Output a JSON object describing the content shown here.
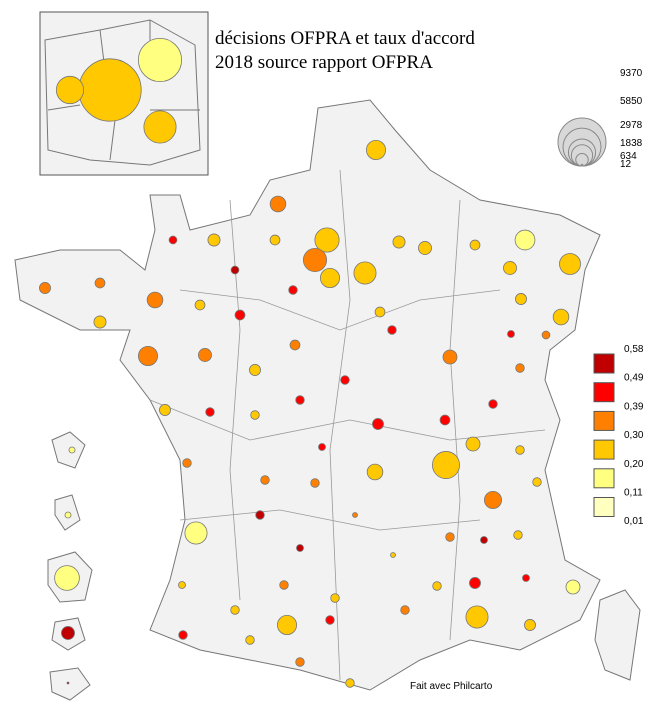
{
  "title": [
    "décisions OFPRA et taux d'accord",
    "2018 source rapport OFPRA"
  ],
  "size_legend": {
    "values": [
      9370,
      5850,
      2978,
      1838,
      634,
      12
    ]
  },
  "color_legend": {
    "breaks": [
      {
        "value": 0.58,
        "label": "0,58"
      },
      {
        "value": 0.49,
        "label": "0,49"
      },
      {
        "value": 0.39,
        "label": "0,39"
      },
      {
        "value": 0.3,
        "label": "0,30"
      },
      {
        "value": 0.2,
        "label": "0,20"
      },
      {
        "value": 0.11,
        "label": "0,11"
      },
      {
        "value": 0.01,
        "label": "0,01"
      }
    ],
    "colors": [
      "#c00000",
      "#ff0000",
      "#ff8000",
      "#ffc800",
      "#ffff80",
      "#ffffc0"
    ]
  },
  "credit": "Fait avec Philcarto",
  "inset": [
    {
      "decisions": 9370,
      "rate": 0.25
    },
    {
      "decisions": 4500,
      "rate": 0.15
    },
    {
      "decisions": 1800,
      "rate": 0.25
    },
    {
      "decisions": 2500,
      "rate": 0.25
    }
  ],
  "departments": [
    {
      "decisions": 1500,
      "rate": 0.25
    },
    {
      "decisions": 1000,
      "rate": 0.35
    },
    {
      "decisions": 600,
      "rate": 0.25
    },
    {
      "decisions": 250,
      "rate": 0.45
    },
    {
      "decisions": 250,
      "rate": 0.55
    },
    {
      "decisions": 400,
      "rate": 0.25
    },
    {
      "decisions": 2400,
      "rate": 0.25
    },
    {
      "decisions": 2200,
      "rate": 0.35
    },
    {
      "decisions": 1500,
      "rate": 0.25
    },
    {
      "decisions": 2000,
      "rate": 0.25
    },
    {
      "decisions": 300,
      "rate": 0.45
    },
    {
      "decisions": 400,
      "rate": 0.45
    },
    {
      "decisions": 400,
      "rate": 0.25
    },
    {
      "decisions": 1000,
      "rate": 0.35
    },
    {
      "decisions": 600,
      "rate": 0.25
    },
    {
      "decisions": 500,
      "rate": 0.35
    },
    {
      "decisions": 400,
      "rate": 0.35
    },
    {
      "decisions": 1500,
      "rate": 0.35
    },
    {
      "decisions": 700,
      "rate": 0.35
    },
    {
      "decisions": 500,
      "rate": 0.25
    },
    {
      "decisions": 400,
      "rate": 0.35
    },
    {
      "decisions": 300,
      "rate": 0.45
    },
    {
      "decisions": 300,
      "rate": 0.45
    },
    {
      "decisions": 700,
      "rate": 0.25
    },
    {
      "decisions": 400,
      "rate": 0.25
    },
    {
      "decisions": 1600,
      "rate": 0.15
    },
    {
      "decisions": 1800,
      "rate": 0.25
    },
    {
      "decisions": 700,
      "rate": 0.25
    },
    {
      "decisions": 500,
      "rate": 0.25
    },
    {
      "decisions": 1000,
      "rate": 0.25
    },
    {
      "decisions": 250,
      "rate": 0.35
    },
    {
      "decisions": 200,
      "rate": 0.45
    },
    {
      "decisions": 800,
      "rate": 0.35
    },
    {
      "decisions": 300,
      "rate": 0.35
    },
    {
      "decisions": 300,
      "rate": 0.45
    },
    {
      "decisions": 400,
      "rate": 0.25
    },
    {
      "decisions": 600,
      "rate": 0.25
    },
    {
      "decisions": 300,
      "rate": 0.45
    },
    {
      "decisions": 300,
      "rate": 0.25
    },
    {
      "decisions": 300,
      "rate": 0.45
    },
    {
      "decisions": 500,
      "rate": 0.45
    },
    {
      "decisions": 400,
      "rate": 0.45
    },
    {
      "decisions": 800,
      "rate": 0.25
    },
    {
      "decisions": 3000,
      "rate": 0.25
    },
    {
      "decisions": 1000,
      "rate": 0.25
    },
    {
      "decisions": 200,
      "rate": 0.45
    },
    {
      "decisions": 300,
      "rate": 0.35
    },
    {
      "decisions": 300,
      "rate": 0.35
    },
    {
      "decisions": 500,
      "rate": 0.25
    },
    {
      "decisions": 2000,
      "rate": 0.15
    },
    {
      "decisions": 300,
      "rate": 0.55
    },
    {
      "decisions": 300,
      "rate": 0.35
    },
    {
      "decisions": 1200,
      "rate": 0.35
    },
    {
      "decisions": 300,
      "rate": 0.25
    },
    {
      "decisions": 300,
      "rate": 0.25
    },
    {
      "decisions": 300,
      "rate": 0.35
    },
    {
      "decisions": 300,
      "rate": 0.25
    },
    {
      "decisions": 200,
      "rate": 0.55
    },
    {
      "decisions": 100,
      "rate": 0.35
    },
    {
      "decisions": 200,
      "rate": 0.55
    },
    {
      "decisions": 100,
      "rate": 0.2
    },
    {
      "decisions": 500,
      "rate": 0.45
    },
    {
      "decisions": 200,
      "rate": 0.45
    },
    {
      "decisions": 300,
      "rate": 0.25
    },
    {
      "decisions": 800,
      "rate": 0.15
    },
    {
      "decisions": 2000,
      "rate": 0.25
    },
    {
      "decisions": 500,
      "rate": 0.25
    },
    {
      "decisions": 300,
      "rate": 0.35
    },
    {
      "decisions": 300,
      "rate": 0.25
    },
    {
      "decisions": 300,
      "rate": 0.35
    },
    {
      "decisions": 1500,
      "rate": 0.25
    },
    {
      "decisions": 300,
      "rate": 0.25
    },
    {
      "decisions": 200,
      "rate": 0.25
    },
    {
      "decisions": 300,
      "rate": 0.45
    },
    {
      "decisions": 300,
      "rate": 0.25
    },
    {
      "decisions": 300,
      "rate": 0.35
    },
    {
      "decisions": 300,
      "rate": 0.25
    },
    {
      "decisions": 300,
      "rate": 0.45
    },
    {
      "decisions": 150,
      "rate": 0.15
    },
    {
      "decisions": 150,
      "rate": 0.15
    },
    {
      "decisions": 2500,
      "rate": 0.15
    },
    {
      "decisions": 700,
      "rate": 0.55
    },
    {
      "decisions": 12,
      "rate": 0.55
    }
  ]
}
